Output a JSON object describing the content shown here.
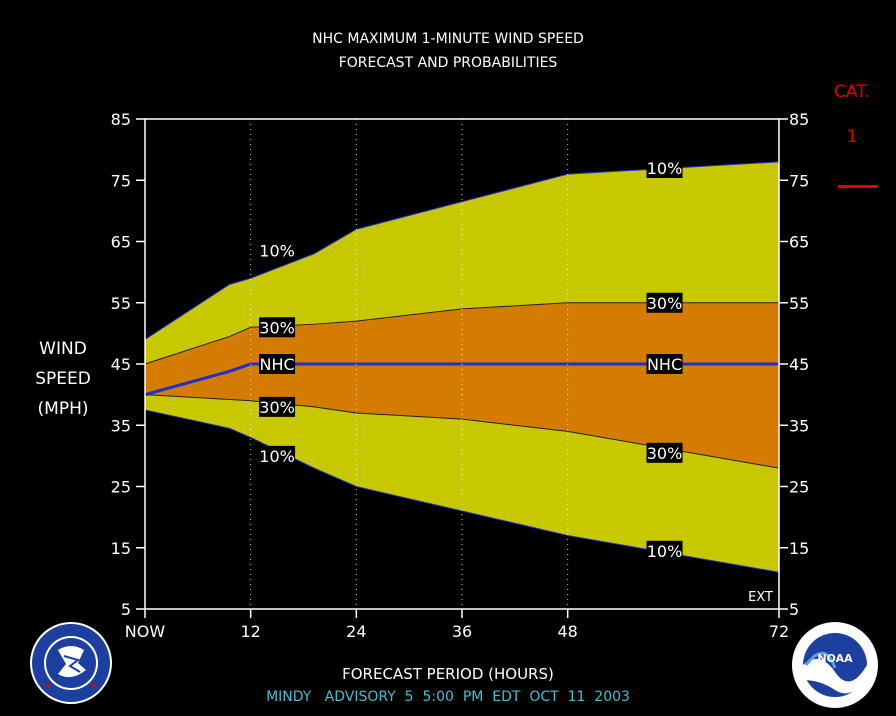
{
  "header": {
    "title_line1": "NHC MAXIMUM 1-MINUTE WIND SPEED",
    "title_line2": "FORECAST AND PROBABILITIES"
  },
  "ylabel": [
    "WIND",
    "SPEED",
    "(MPH)"
  ],
  "category": {
    "label": "CAT.",
    "value": "1",
    "color": "#e00000"
  },
  "xlabel": "FORECAST PERIOD (HOURS)",
  "advisory": "MINDY   ADVISORY  5  5:00  PM  EDT  OCT  11  2003",
  "ext_label": "EXT",
  "logos": {
    "left": "NWS",
    "right": "NOAA"
  },
  "colors": {
    "outer_band": "#c8c800",
    "inner_band": "#d47c00",
    "nhc_line": "#2030d0",
    "advisory_text": "#40c0d0"
  },
  "chart_data": {
    "type": "area",
    "xlim": [
      0,
      72
    ],
    "ylim": [
      5,
      85
    ],
    "x_ticks": [
      0,
      12,
      24,
      36,
      48,
      72
    ],
    "x_tick_labels": [
      "NOW",
      "12",
      "24",
      "36",
      "48",
      "72"
    ],
    "y_ticks": [
      5,
      15,
      25,
      35,
      45,
      55,
      65,
      75,
      85
    ],
    "x": [
      0,
      9.6,
      12,
      19.2,
      24,
      36,
      48,
      72
    ],
    "series": [
      {
        "name": "10%",
        "role": "upper_outer",
        "values": [
          49,
          58,
          59,
          63,
          67,
          71.5,
          76,
          78
        ]
      },
      {
        "name": "30%",
        "role": "upper_inner",
        "values": [
          45,
          49.5,
          51,
          51.5,
          52,
          54,
          55,
          55
        ]
      },
      {
        "name": "NHC",
        "role": "forecast",
        "values": [
          40,
          43.8,
          45,
          45,
          45,
          45,
          45,
          45
        ]
      },
      {
        "name": "30%",
        "role": "lower_inner",
        "values": [
          40,
          39.2,
          39,
          38,
          37,
          36,
          34,
          28
        ]
      },
      {
        "name": "10%",
        "role": "lower_outer",
        "values": [
          37.5,
          34.5,
          33,
          28,
          25,
          21,
          17,
          11
        ]
      }
    ],
    "annotations": [
      {
        "text": "10%",
        "x": 15,
        "y": 63.5
      },
      {
        "text": "10%",
        "x": 59,
        "y": 77
      },
      {
        "text": "30%",
        "x": 15,
        "y": 51
      },
      {
        "text": "30%",
        "x": 59,
        "y": 55
      },
      {
        "text": "NHC",
        "x": 15,
        "y": 45
      },
      {
        "text": "NHC",
        "x": 59,
        "y": 45
      },
      {
        "text": "30%",
        "x": 15,
        "y": 38
      },
      {
        "text": "30%",
        "x": 59,
        "y": 30.5
      },
      {
        "text": "10%",
        "x": 15,
        "y": 30
      },
      {
        "text": "10%",
        "x": 59,
        "y": 14.5
      }
    ],
    "grid": "vertical-dotted"
  }
}
